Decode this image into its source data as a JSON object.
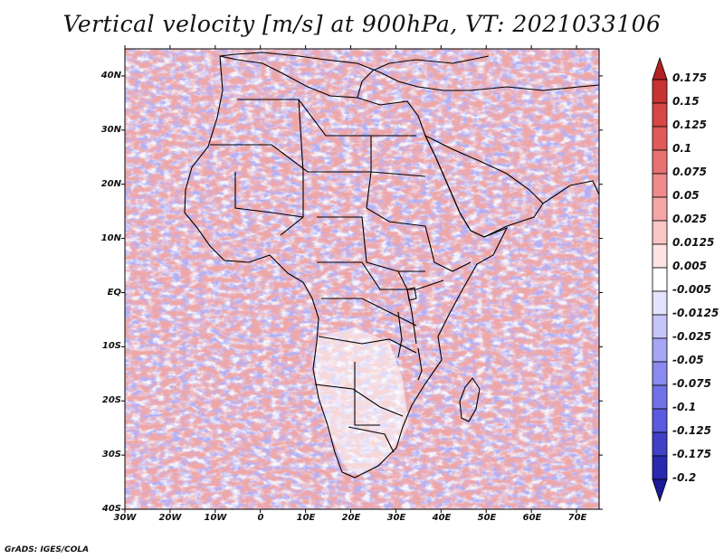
{
  "title": "Vertical velocity [m/s] at 900hPa, VT: 2021033106",
  "credit": "GrADS: IGES/COLA",
  "map": {
    "projection": "lat-lon",
    "lon_range": [
      -30,
      75
    ],
    "lat_range": [
      -40,
      45
    ],
    "lon_ticks": [
      "30W",
      "20W",
      "10W",
      "0",
      "10E",
      "20E",
      "30E",
      "40E",
      "50E",
      "60E",
      "70E"
    ],
    "lat_ticks": [
      "40N",
      "30N",
      "20N",
      "10N",
      "EQ",
      "10S",
      "20S",
      "30S",
      "40S"
    ],
    "field": "vertical velocity (m/s), shaded, red = positive, blue = negative",
    "coastlines": "Africa, Arabia, southern Europe, Madagascar"
  },
  "colorbar": {
    "labels": [
      "0.175",
      "0.15",
      "0.125",
      "0.1",
      "0.075",
      "0.05",
      "0.025",
      "0.0125",
      "0.005",
      "-0.005",
      "-0.0125",
      "-0.025",
      "-0.05",
      "-0.075",
      "-0.1",
      "-0.125",
      "-0.175",
      "-0.2"
    ],
    "colors": [
      "#b22222",
      "#c83232",
      "#d84646",
      "#e05a5a",
      "#e87272",
      "#f08a8a",
      "#f5a5a5",
      "#f9c5c5",
      "#fde3e3",
      "#ffffff",
      "#e3e3fd",
      "#c5c5f9",
      "#a5a5f5",
      "#8a8af0",
      "#7272e8",
      "#5a5ae0",
      "#4040c8",
      "#2828b0",
      "#1a1a9a"
    ]
  }
}
